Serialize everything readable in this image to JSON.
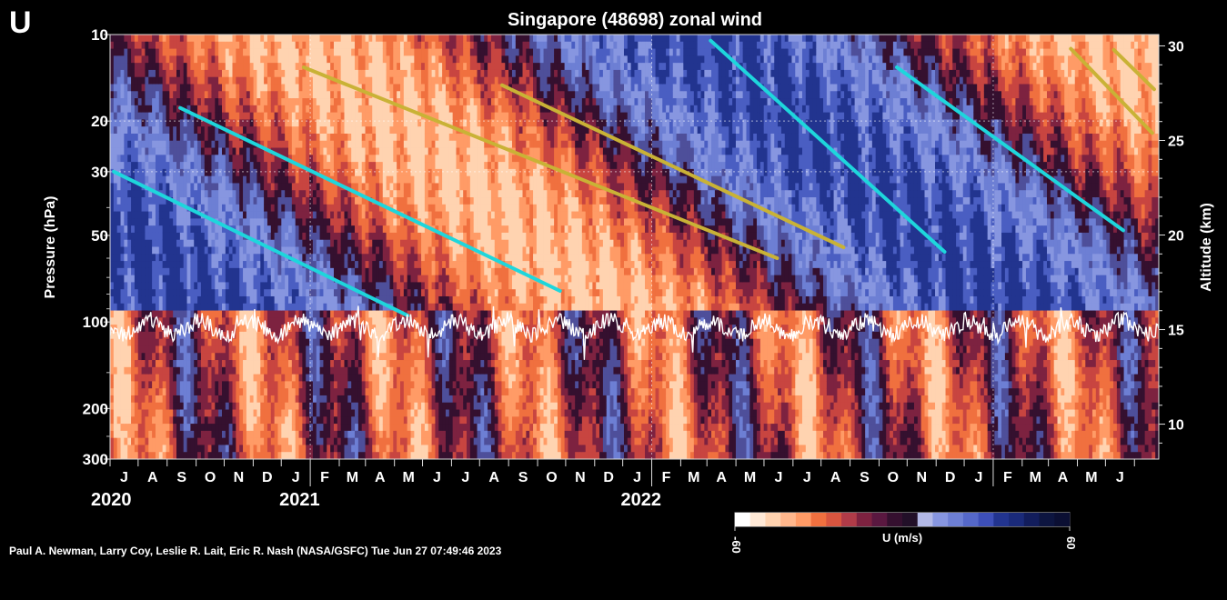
{
  "panel_letter": "U",
  "footer": "Paul A. Newman, Larry Coy, Leslie R. Lait, Eric R. Nash (NASA/GSFC) Tue Jun 27 07:49:46 2023",
  "colors": {
    "background": "#000000",
    "westerly": "#ff7a45",
    "easterly": "#6a7ed6",
    "neutral": "#3a0f33",
    "trend_easterly": "#1ed6dc",
    "trend_westerly": "#c9b236",
    "tropopause_line": "#ffffff"
  },
  "chart_data": {
    "type": "heatmap",
    "title": "Singapore (48698) zonal wind",
    "ylabel": "Pressure (hPa)",
    "y2label": "Altitude (km)",
    "xlabel": "",
    "x_range": [
      "2020-06-01",
      "2023-06-27"
    ],
    "y_scale": "log",
    "ylim": [
      300,
      10
    ],
    "y_ticks": [
      10,
      20,
      30,
      50,
      100,
      200,
      300
    ],
    "y2_ticks": [
      10,
      15,
      20,
      25,
      30
    ],
    "month_labels": [
      "J",
      "A",
      "S",
      "O",
      "N",
      "D",
      "J",
      "F",
      "M",
      "A",
      "M",
      "J",
      "J",
      "A",
      "S",
      "O",
      "N",
      "D",
      "J",
      "F",
      "M",
      "A",
      "M",
      "J",
      "J",
      "A",
      "S",
      "O",
      "N",
      "D",
      "J",
      "F",
      "M",
      "A",
      "M",
      "J"
    ],
    "year_labels": [
      "2020",
      "2021",
      "2022"
    ],
    "colorbar": {
      "label": "U (m/s)",
      "min": -60,
      "max": 60,
      "min_label": "-60",
      "max_label": "60"
    },
    "qbo_bands": [
      {
        "regime": "westerly",
        "start_top": "2020-06-01",
        "start_bottom": "2020-06-01",
        "days_to_descend": 560
      },
      {
        "regime": "easterly",
        "start_top": "2020-06-01",
        "days_to_descend": 450
      },
      {
        "regime": "westerly",
        "start_top": "2020-08-15",
        "days_to_descend": 560
      },
      {
        "regime": "easterly",
        "start_top": "2021-12-15",
        "days_to_descend": 480
      },
      {
        "regime": "westerly",
        "start_top": "2023-01-10",
        "days_to_descend": 480
      }
    ],
    "trend_lines": [
      {
        "name": "",
        "regime": "easterly",
        "points": [
          [
            "2020-06-05",
            30
          ],
          [
            "2021-04-15",
            95
          ]
        ]
      },
      {
        "name": "",
        "regime": "easterly",
        "points": [
          [
            "2020-08-15",
            18
          ],
          [
            "2021-09-25",
            78
          ]
        ]
      },
      {
        "name": "",
        "regime": "westerly",
        "points": [
          [
            "2020-12-25",
            13
          ],
          [
            "2022-05-15",
            60
          ]
        ]
      },
      {
        "name": "",
        "regime": "westerly",
        "points": [
          [
            "2021-07-25",
            15
          ],
          [
            "2022-07-25",
            55
          ]
        ]
      },
      {
        "name": "",
        "regime": "easterly",
        "points": [
          [
            "2022-03-05",
            10.5
          ],
          [
            "2022-11-10",
            57
          ]
        ]
      },
      {
        "name": "",
        "regime": "easterly",
        "points": [
          [
            "2022-09-20",
            13
          ],
          [
            "2023-05-20",
            48
          ]
        ]
      },
      {
        "name": "",
        "regime": "westerly",
        "points": [
          [
            "2023-03-25",
            11.2
          ],
          [
            "2023-06-20",
            22
          ]
        ]
      },
      {
        "name": "",
        "regime": "westerly",
        "points": [
          [
            "2023-05-10",
            11.3
          ],
          [
            "2023-06-22",
            15.5
          ]
        ]
      }
    ],
    "tropopause_mean_hPa": 105
  }
}
